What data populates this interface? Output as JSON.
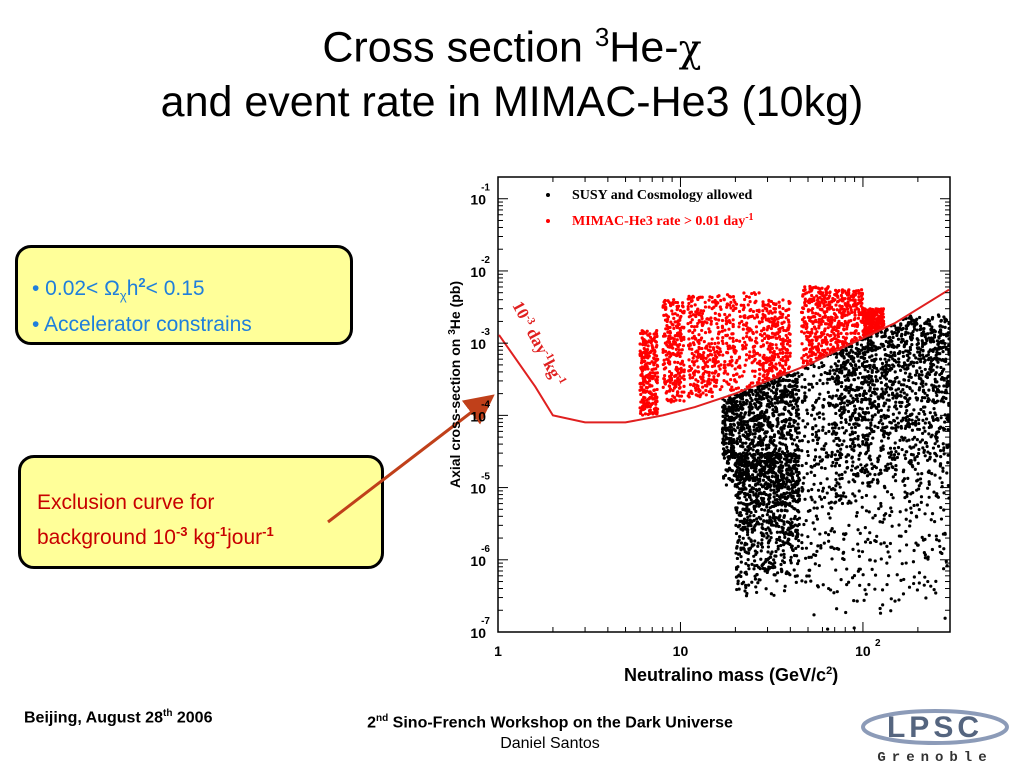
{
  "title": {
    "line1_a": "Cross section ",
    "line1_sup": "3",
    "line1_b": "He-",
    "line1_chi": "χ",
    "line2": "and event rate in MIMAC-He3 (10kg)"
  },
  "box1": {
    "bullet1_a": "• 0.02< Ω",
    "bullet1_sub": "χ",
    "bullet1_b": "h",
    "bullet1_sup": "2",
    "bullet1_c": "< 0.15",
    "bullet2": "• Accelerator constrains"
  },
  "box2": {
    "line1": "Exclusion curve for",
    "line2_a": "background 10",
    "line2_sup1": "-3",
    "line2_b": " kg",
    "line2_sup2": "-1",
    "line2_c": "jour",
    "line2_sup3": "-1"
  },
  "footer": {
    "left_a": "Beijing,  August 28",
    "left_sup": "th",
    "left_b": "  2006",
    "center_sup": "nd",
    "center_pre": "2",
    "center_a": " Sino-French Workshop on the Dark Universe",
    "center_author": "Daniel Santos"
  },
  "logo": {
    "text_top": "LPSC",
    "text_bottom": "Grenoble"
  },
  "colors": {
    "box_fill": "#ffff99",
    "box1_text": "#1f7fdc",
    "box2_text": "#c80000",
    "red_series": "#ff0000",
    "black_series": "#000000",
    "arrow": "#c0401a"
  },
  "chart_data": {
    "type": "scatter",
    "scale": "log-log",
    "xlabel": "Neutralino mass (GeV/c",
    "xlabel_sup": "2",
    "xlabel_end": ")",
    "ylabel_a": "Axial cross-section on ",
    "ylabel_sup": "3",
    "ylabel_b": "He (pb)",
    "xlim": [
      1,
      300
    ],
    "ylim": [
      1e-07,
      0.2
    ],
    "x_ticks": [
      {
        "value": 1,
        "base": "1",
        "exp": ""
      },
      {
        "value": 10,
        "base": "10",
        "exp": ""
      },
      {
        "value": 100,
        "base": "10",
        "exp": "2"
      }
    ],
    "y_ticks": [
      {
        "value": 0.1,
        "base": "10",
        "exp": "-1"
      },
      {
        "value": 0.01,
        "base": "10",
        "exp": "-2"
      },
      {
        "value": 0.001,
        "base": "10",
        "exp": "-3"
      },
      {
        "value": 0.0001,
        "base": "10",
        "exp": "-4"
      },
      {
        "value": 1e-05,
        "base": "10",
        "exp": "-5"
      },
      {
        "value": 1e-06,
        "base": "10",
        "exp": "-6"
      },
      {
        "value": 1e-07,
        "base": "10",
        "exp": "-7"
      }
    ],
    "legend": [
      {
        "label": "SUSY and Cosmology allowed",
        "sup": "",
        "color": "#000000"
      },
      {
        "label": "MIMAC-He3 rate > 0.01 day",
        "sup": "-1",
        "color": "#ff0000"
      }
    ],
    "legend_position": "top",
    "exclusion_curve": {
      "name": "10-3 day-1 kg-1",
      "label_base1": "10",
      "label_sup1": "-3",
      "label_base2": " day",
      "label_sup2": "-1",
      "label_base3": "kg",
      "label_sup3": "-1",
      "x": [
        1,
        1.6,
        2,
        3,
        5,
        8,
        12,
        20,
        35,
        50,
        80,
        150,
        300
      ],
      "y": [
        0.0013,
        0.00025,
        0.0001,
        8e-05,
        8e-05,
        0.0001,
        0.00013,
        0.0002,
        0.00035,
        0.0005,
        0.0009,
        0.0019,
        0.0055
      ]
    },
    "red_regions": [
      {
        "x": [
          6,
          7.5
        ],
        "y": [
          0.0001,
          0.0015
        ]
      },
      {
        "x": [
          8,
          10.5
        ],
        "y": [
          0.00015,
          0.004
        ]
      },
      {
        "x": [
          11,
          16
        ],
        "y": [
          0.00018,
          0.0045
        ]
      },
      {
        "x": [
          16,
          28
        ],
        "y": [
          0.00022,
          0.005
        ]
      },
      {
        "x": [
          28,
          40
        ],
        "y": [
          0.0003,
          0.004
        ]
      },
      {
        "x": [
          46,
          65
        ],
        "y": [
          0.0004,
          0.0065
        ]
      },
      {
        "x": [
          65,
          100
        ],
        "y": [
          0.0006,
          0.0055
        ]
      },
      {
        "x": [
          100,
          130
        ],
        "y": [
          0.0009,
          0.003
        ]
      }
    ],
    "black_regions": [
      {
        "x": [
          17,
          45
        ],
        "y": [
          1e-05,
          0.0004
        ]
      },
      {
        "x": [
          20,
          45
        ],
        "y": [
          3e-07,
          3e-05
        ]
      },
      {
        "x": [
          46,
          300
        ],
        "y": [
          1e-07,
          0.002
        ]
      },
      {
        "x": [
          70,
          300
        ],
        "y": [
          1e-05,
          0.0025
        ]
      }
    ]
  }
}
